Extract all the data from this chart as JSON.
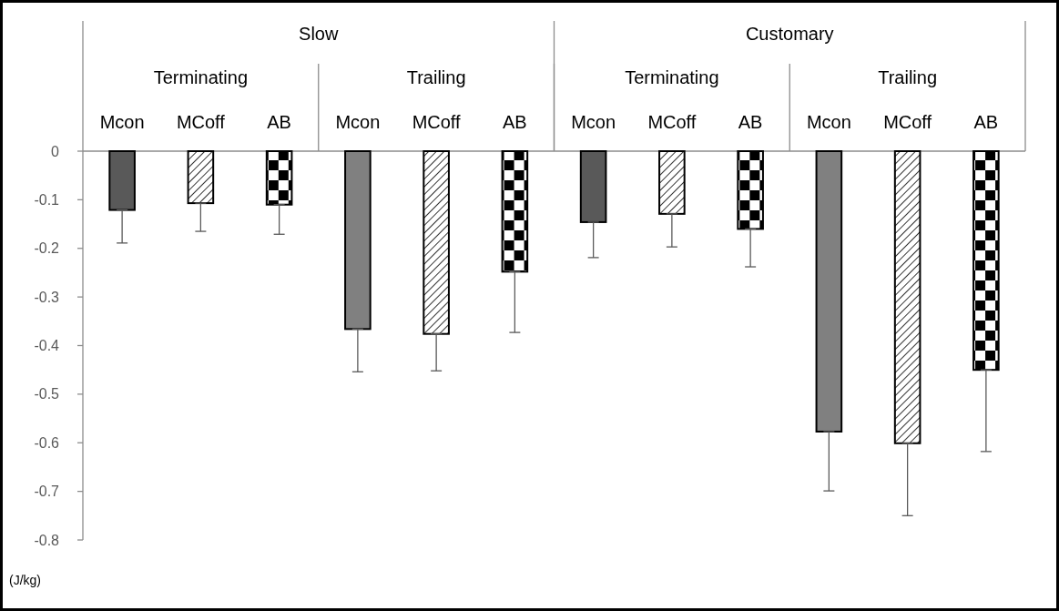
{
  "chart_data": {
    "type": "bar",
    "ylabel": "(J/kg)",
    "categories": [
      "Mcon",
      "MCoff",
      "AB",
      "Mcon",
      "MCoff",
      "AB",
      "Mcon",
      "MCoff",
      "AB",
      "Mcon",
      "MCoff",
      "AB"
    ],
    "annotations": [
      "Slow",
      "Customary",
      "Terminating",
      "Trailing",
      "Terminating",
      "Trailing"
    ],
    "values": [
      -0.121,
      -0.107,
      -0.11,
      -0.366,
      -0.376,
      -0.248,
      -0.146,
      -0.129,
      -0.16,
      -0.577,
      -0.601,
      -0.45
    ],
    "colors": [
      "#595959",
      "#000000",
      "#000000",
      "#808080",
      "#000000",
      "#000000",
      "#595959",
      "#000000",
      "#000000",
      "#808080",
      "#000000",
      "#000000"
    ],
    "errors": [
      [
        -0.189,
        -0.121
      ],
      [
        -0.165,
        -0.107
      ],
      [
        -0.171,
        -0.11
      ],
      [
        -0.454,
        -0.366
      ],
      [
        -0.452,
        -0.376
      ],
      [
        -0.373,
        -0.248
      ],
      [
        -0.219,
        -0.146
      ],
      [
        -0.197,
        -0.129
      ],
      [
        -0.238,
        -0.16
      ],
      [
        -0.699,
        -0.577
      ],
      [
        -0.75,
        -0.601
      ],
      [
        -0.618,
        -0.45
      ]
    ],
    "ylim": [
      -0.8,
      0
    ],
    "yticks": [
      0,
      -0.1,
      -0.2,
      -0.3,
      -0.4,
      -0.5,
      -0.6,
      -0.7,
      -0.8
    ],
    "grid": false
  }
}
